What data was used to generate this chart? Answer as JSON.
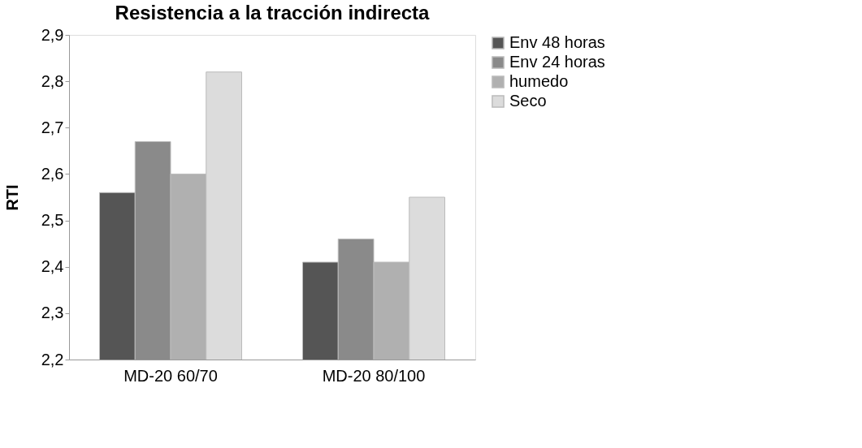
{
  "chart_data": {
    "type": "bar",
    "title": "Resistencia a la tracción indirecta",
    "ylabel": "RTI",
    "categories": [
      "MD-20 60/70",
      "MD-20 80/100"
    ],
    "series": [
      {
        "name": "Env 48 horas",
        "color": "#555555",
        "values": [
          2.56,
          2.41
        ]
      },
      {
        "name": "Env 24 horas",
        "color": "#8a8a8a",
        "values": [
          2.67,
          2.46
        ]
      },
      {
        "name": "humedo",
        "color": "#b0b0b0",
        "values": [
          2.6,
          2.41
        ]
      },
      {
        "name": "Seco",
        "color": "#dcdcdc",
        "values": [
          2.82,
          2.55
        ]
      }
    ],
    "ylim": [
      2.2,
      2.9
    ],
    "yticks": [
      {
        "value": 2.2,
        "label": "2,2"
      },
      {
        "value": 2.3,
        "label": "2,3"
      },
      {
        "value": 2.4,
        "label": "2,4"
      },
      {
        "value": 2.5,
        "label": "2,5"
      },
      {
        "value": 2.6,
        "label": "2,6"
      },
      {
        "value": 2.7,
        "label": "2,7"
      },
      {
        "value": 2.8,
        "label": "2,8"
      },
      {
        "value": 2.9,
        "label": "2,9"
      }
    ],
    "grid": false,
    "legend": "right"
  }
}
